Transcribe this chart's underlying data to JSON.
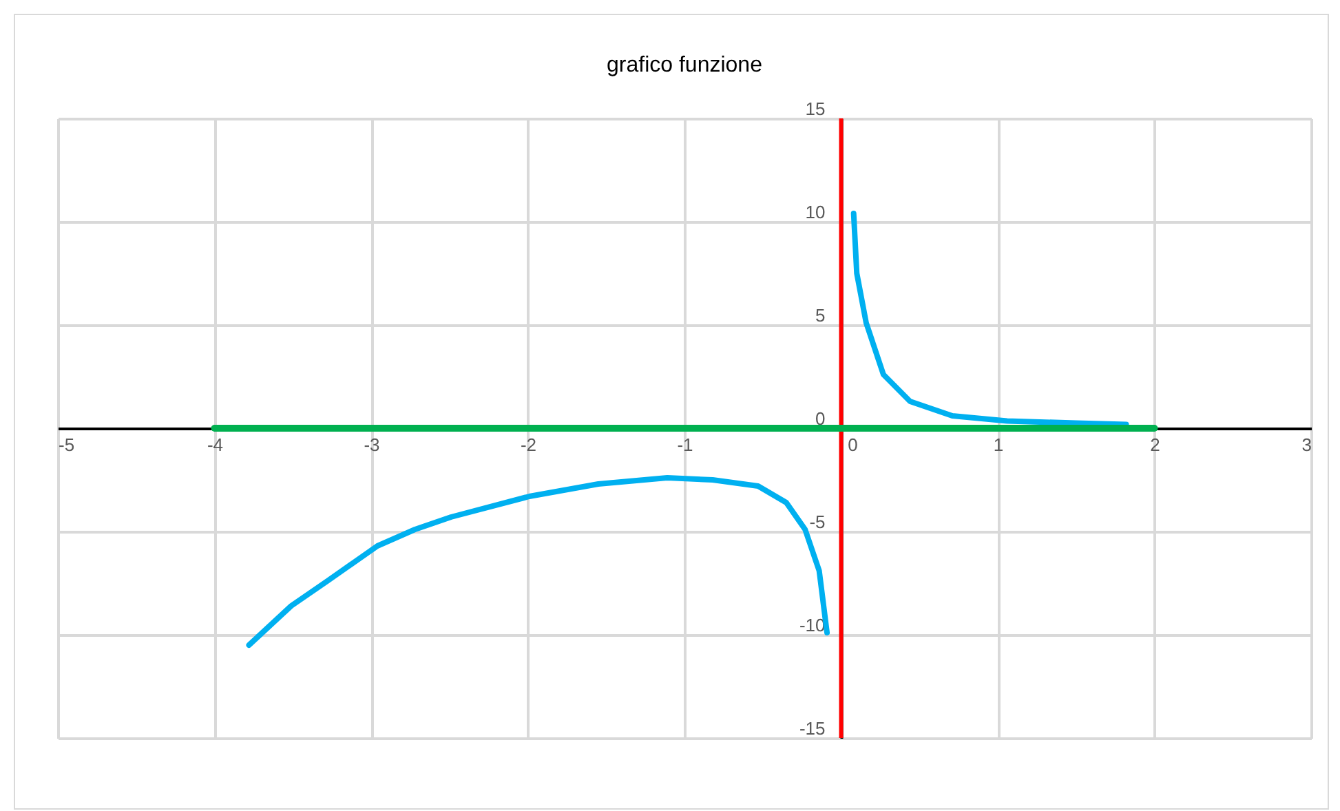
{
  "chart_data": {
    "type": "line",
    "title": "grafico funzione",
    "xlim": [
      -5,
      3
    ],
    "xticks": [
      -5,
      -4,
      -3,
      -2,
      -1,
      0,
      1,
      2,
      3
    ],
    "ylim": [
      -15,
      15
    ],
    "yticks": [
      -15,
      -10,
      -5,
      0,
      5,
      10,
      15
    ],
    "grid": true,
    "marker": "none",
    "line_style": "solid",
    "series": [
      {
        "color": "#00b0f0",
        "x": [
          -3.78,
          -3.51,
          -3.28,
          -2.96,
          -2.72,
          -2.49,
          -1.99,
          -1.55,
          -1.11,
          -0.82,
          -0.53,
          -0.35,
          -0.23,
          -0.14,
          -0.09
        ],
        "values": [
          -10.5,
          -8.6,
          -7.4,
          -5.7,
          -4.9,
          -4.3,
          -3.3,
          -2.7,
          -2.4,
          -2.5,
          -2.8,
          -3.6,
          -4.9,
          -6.9,
          -9.9
        ]
      },
      {
        "color": "#00b0f0",
        "x": [
          0.08,
          0.1,
          0.16,
          0.27,
          0.44,
          0.71,
          1.06,
          1.5,
          1.82
        ],
        "values": [
          10.4,
          7.5,
          5.1,
          2.6,
          1.3,
          0.6,
          0.35,
          0.25,
          0.18
        ]
      },
      {
        "color": "#ff0000",
        "x": [
          0,
          0
        ],
        "values": [
          15,
          -15
        ]
      },
      {
        "color": "#00b050",
        "x": [
          -4,
          2
        ],
        "values": [
          0,
          0
        ]
      }
    ]
  }
}
